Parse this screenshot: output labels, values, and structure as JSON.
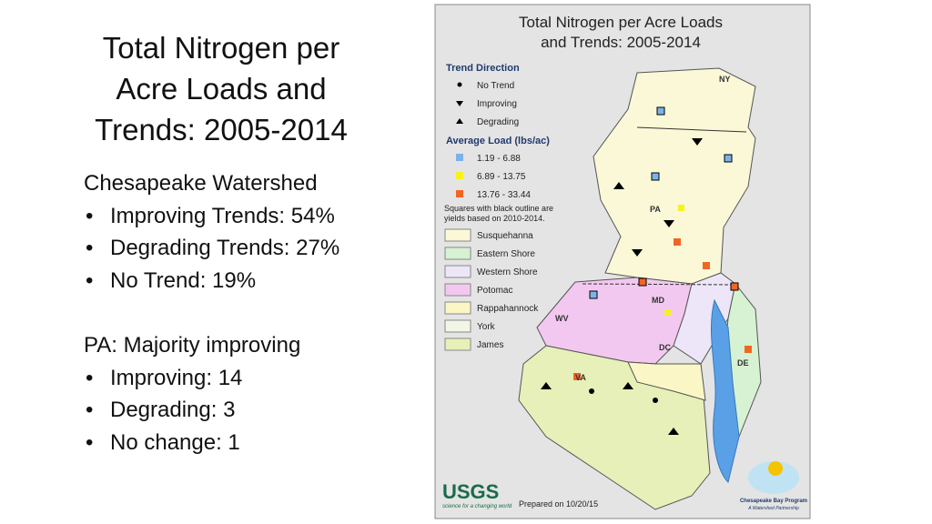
{
  "slide": {
    "title": [
      "Total Nitrogen per",
      "Acre Loads and",
      "Trends: 2005-2014"
    ],
    "sections": [
      {
        "heading": "Chesapeake Watershed",
        "bullets": [
          "Improving Trends: 54%",
          "Degrading Trends: 27%",
          "No Trend: 19%"
        ]
      },
      {
        "heading": "PA: Majority improving",
        "bullets": [
          "Improving: 14",
          "Degrading: 3",
          "No change: 1"
        ]
      }
    ]
  },
  "map": {
    "title": [
      "Total Nitrogen per Acre Loads",
      "and Trends: 2005-2014"
    ],
    "trend_heading": "Trend Direction",
    "trends": [
      "No Trend",
      "Improving",
      "Degrading"
    ],
    "load_heading": "Average Load (lbs/ac)",
    "loads": [
      "1.19 - 6.88",
      "6.89 - 13.75",
      "13.76 - 33.44"
    ],
    "note": [
      "Squares with black outline are",
      "yields based on 2010-2014."
    ],
    "basins": [
      "Susquehanna",
      "Eastern Shore",
      "Western Shore",
      "Potomac",
      "Rappahannock",
      "York",
      "James"
    ],
    "states": [
      "NY",
      "PA",
      "MD",
      "WV",
      "DC",
      "VA",
      "DE"
    ],
    "logo": "USGS",
    "logo_tagline": "science for a changing world",
    "prepared": "Prepared on 10/20/15",
    "partner": [
      "Chesapeake Bay Program",
      "A Watershed Partnership"
    ]
  }
}
